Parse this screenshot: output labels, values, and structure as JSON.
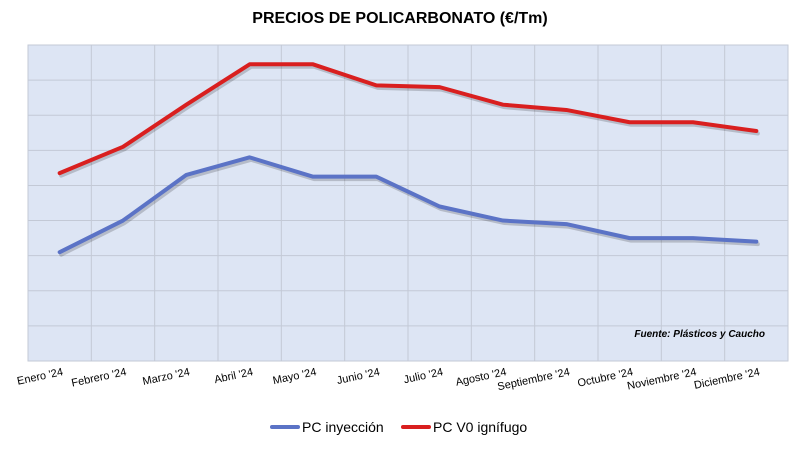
{
  "chart_data": {
    "type": "line",
    "title": "PRECIOS DE POLICARBONATO (€/Tm)",
    "xlabel": "",
    "ylabel": "",
    "categories": [
      "Enero '24",
      "Febrero '24",
      "Marzo '24",
      "Abril '24",
      "Mayo '24",
      "Junio '24",
      "Julio '24",
      "Agosto '24",
      "Septiembre '24",
      "Octubre '24",
      "Noviembre '24",
      "Diciembre '24"
    ],
    "ylim": [
      0,
      9
    ],
    "grid": true,
    "legend": "bottom",
    "annotation": "Fuente: Plásticos y Caucho",
    "series": [
      {
        "name": "PC inyección",
        "color": "#5b73c6",
        "values": [
          3.1,
          4.0,
          5.3,
          5.8,
          5.25,
          5.25,
          4.4,
          4.0,
          3.9,
          3.5,
          3.5,
          3.4
        ]
      },
      {
        "name": "PC V0 ignífugo",
        "color": "#d91f1f",
        "values": [
          5.35,
          6.1,
          7.3,
          8.45,
          8.45,
          7.85,
          7.8,
          7.3,
          7.15,
          6.8,
          6.8,
          6.55
        ]
      }
    ]
  }
}
